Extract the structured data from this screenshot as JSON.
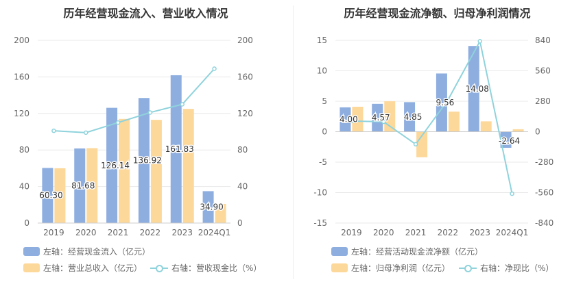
{
  "colors": {
    "bar1": "#8eaee0",
    "bar2": "#fdd89b",
    "line": "#8fd3dc",
    "grid": "#e8e8e8",
    "axis_text": "#666666",
    "label_text": "#333333"
  },
  "left": {
    "title": "历年经营现金流入、营业收入情况",
    "legend": {
      "bar1": "左轴：经营现金流入（亿元）",
      "bar2": "左轴：营业总收入（亿元）",
      "line": "右轴：营收现金比（%）"
    }
  },
  "right": {
    "title": "历年经营现金流净额、归母净利润情况",
    "legend": {
      "bar1": "左轴：经营活动现金流净额（亿元）",
      "bar2": "左轴：归母净利润（亿元）",
      "line": "右轴：净现比（%）"
    }
  },
  "chart_data": [
    {
      "type": "bar",
      "categories": [
        "2019",
        "2020",
        "2021",
        "2022",
        "2023",
        "2024Q1"
      ],
      "series": [
        {
          "name": "左轴：经营现金流入（亿元）",
          "axis": "left",
          "kind": "bar",
          "values": [
            60.3,
            81.68,
            126.14,
            136.92,
            161.83,
            34.9
          ],
          "labels": [
            "60.30",
            "81.68",
            "126.14",
            "136.92",
            "161.83",
            "34.90"
          ]
        },
        {
          "name": "左轴：营业总收入（亿元）",
          "axis": "left",
          "kind": "bar",
          "values": [
            60,
            82,
            114,
            113,
            125,
            21
          ]
        },
        {
          "name": "右轴：营收现金比（%）",
          "axis": "right",
          "kind": "line",
          "values": [
            101,
            99,
            110,
            121,
            130,
            169
          ]
        }
      ],
      "left_axis": {
        "ylim": [
          0,
          200
        ],
        "ticks": [
          "0",
          "40",
          "80",
          "120",
          "160",
          "200"
        ]
      },
      "right_axis": {
        "ylim": [
          0,
          200
        ],
        "ticks": [
          "0",
          "40",
          "80",
          "120",
          "160",
          "200"
        ]
      }
    },
    {
      "type": "bar",
      "categories": [
        "2019",
        "2020",
        "2021",
        "2022",
        "2023",
        "2024Q1"
      ],
      "series": [
        {
          "name": "左轴：经营活动现金流净额（亿元）",
          "axis": "left",
          "kind": "bar",
          "values": [
            4.0,
            4.57,
            4.85,
            9.56,
            14.08,
            -2.64
          ],
          "labels": [
            "4.00",
            "4.57",
            "4.85",
            "9.56",
            "14.08",
            "-2.64"
          ]
        },
        {
          "name": "左轴：归母净利润（亿元）",
          "axis": "left",
          "kind": "bar",
          "values": [
            4.1,
            5.0,
            -4.2,
            3.3,
            1.7,
            0.4
          ]
        },
        {
          "name": "右轴：净现比（%）",
          "axis": "right",
          "kind": "line",
          "values": [
            98,
            91,
            -115,
            290,
            832,
            -570
          ]
        }
      ],
      "left_axis": {
        "ylim": [
          -15,
          15
        ],
        "ticks": [
          "-15",
          "-10",
          "-5",
          "0",
          "5",
          "10",
          "15"
        ]
      },
      "right_axis": {
        "ylim": [
          -840,
          840
        ],
        "ticks": [
          "-840",
          "-560",
          "-280",
          "0",
          "280",
          "560",
          "840"
        ]
      }
    }
  ]
}
